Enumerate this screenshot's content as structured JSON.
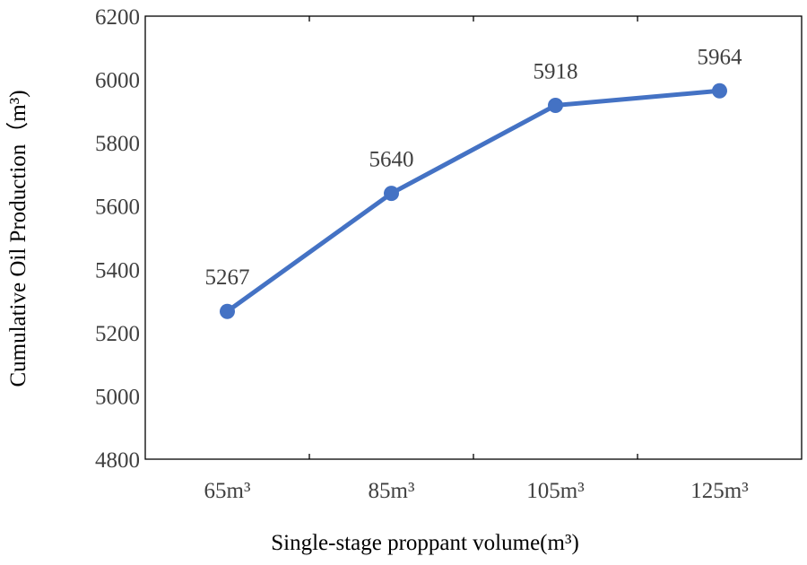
{
  "chart_data": {
    "type": "line",
    "categories": [
      "65m³",
      "85m³",
      "105m³",
      "125m³"
    ],
    "series": [
      {
        "values": [
          5267,
          5640,
          5918,
          5964
        ],
        "color": "#4472C4",
        "marker": "circle"
      }
    ],
    "data_labels": [
      "5267",
      "5640",
      "5918",
      "5964"
    ],
    "xlabel": "Single-stage proppant volume(m³)",
    "ylabel": "Cumulative Oil Production（m³)",
    "ylim": [
      4800,
      6200
    ],
    "yticks": [
      4800,
      5000,
      5200,
      5400,
      5600,
      5800,
      6000,
      6200
    ],
    "ytick_labels": [
      "4800",
      "5000",
      "5200",
      "5400",
      "5600",
      "5800",
      "6000",
      "6200"
    ],
    "grid": false,
    "frame": "box",
    "legend": "none",
    "axis_color": "#000000",
    "text_color": "#404040"
  }
}
